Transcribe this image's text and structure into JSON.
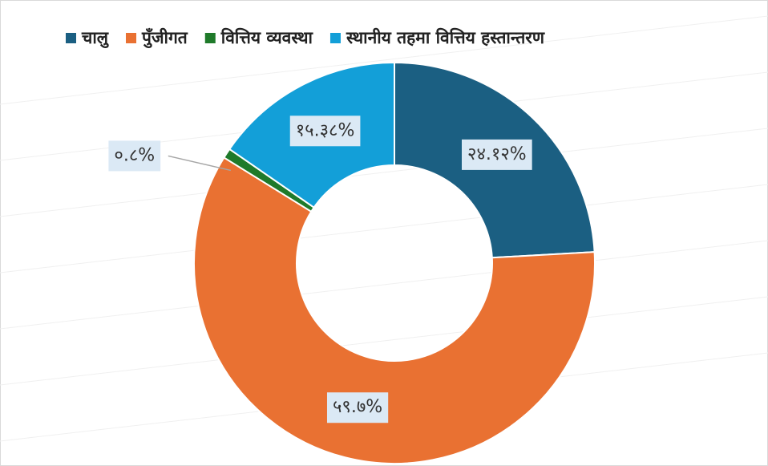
{
  "chart_data": {
    "type": "donut",
    "categories": [
      "चालु",
      "पुँजीगत",
      "वित्तिय व्यवस्था",
      "स्थानीय तहमा वित्तिय हस्तान्तरण"
    ],
    "values": [
      24.12,
      59.7,
      0.8,
      15.38
    ],
    "value_labels": [
      "२४.१२%",
      "५९.७%",
      "०.८%",
      "१५.३८%"
    ],
    "colors": [
      "#1b5f82",
      "#e97132",
      "#1f7a2a",
      "#139fd8"
    ],
    "legend": "top"
  }
}
